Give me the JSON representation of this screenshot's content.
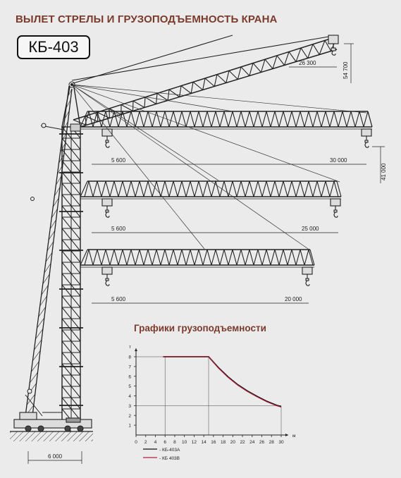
{
  "title": "ВЫЛЕТ СТРЕЛЫ И ГРУЗОПОДЪЕМНОСТЬ КРАНА",
  "model": "КБ-403",
  "dimensions": {
    "luffing_reach": "26 300",
    "luffing_height": "54 700",
    "boom_height": "41 000",
    "base_width": "6 000",
    "jib1_min": "5 600",
    "jib1_max": "30 000",
    "jib2_min": "5 600",
    "jib2_max": "25 000",
    "jib3_min": "5 600",
    "jib3_max": "20 000"
  },
  "chart_title": "Графики грузоподъемности",
  "chart_data": {
    "type": "line",
    "title": "Графики грузоподъемности",
    "xlabel": "м",
    "ylabel": "т",
    "xlim": [
      0,
      30
    ],
    "ylim": [
      0,
      8
    ],
    "x_ticks": [
      "0",
      "2",
      "4",
      "6",
      "8",
      "10",
      "12",
      "14",
      "16",
      "18",
      "20",
      "22",
      "24",
      "26",
      "28",
      "30"
    ],
    "y_ticks": [
      "1",
      "2",
      "3",
      "4",
      "5",
      "6",
      "7",
      "8"
    ],
    "series": [
      {
        "name": "- КБ-403А",
        "color": "#111111",
        "x": [
          5.6,
          15,
          17,
          19,
          21,
          23,
          25,
          27,
          29,
          30
        ],
        "y": [
          8,
          8,
          6.9,
          5.95,
          5.15,
          4.5,
          3.95,
          3.45,
          3.05,
          2.9
        ]
      },
      {
        "name": "- КБ 403В",
        "color": "#b0223a",
        "x": [
          5.6,
          15,
          17,
          19,
          21,
          23,
          25,
          27,
          29,
          30
        ],
        "y": [
          8,
          8,
          6.85,
          5.9,
          5.1,
          4.45,
          3.9,
          3.4,
          3.0,
          2.85
        ]
      }
    ],
    "reference_lines": {
      "y": [
        8,
        3
      ],
      "x": [
        6,
        15
      ]
    },
    "legend": "bottom-left"
  }
}
